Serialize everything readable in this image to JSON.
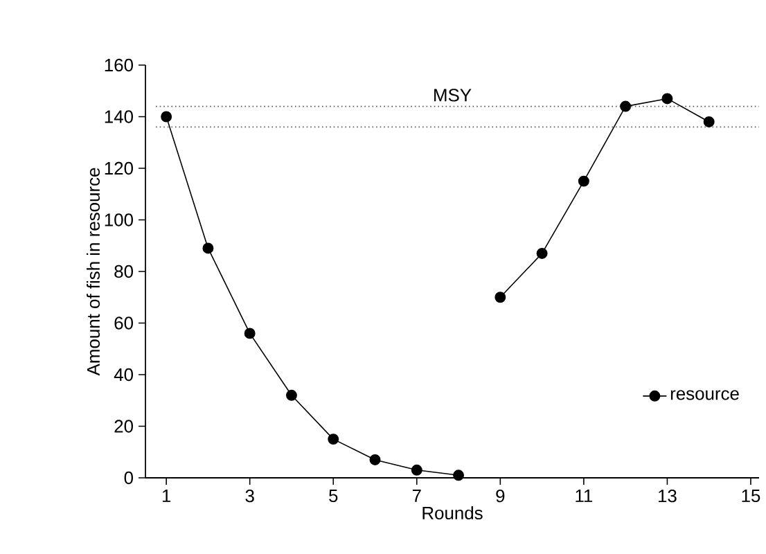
{
  "chart_data": {
    "type": "line",
    "xlabel": "Rounds",
    "ylabel": "Amount of fish in resource",
    "x": [
      1,
      2,
      3,
      4,
      5,
      6,
      7,
      8,
      8.5,
      9,
      10,
      11,
      12,
      13,
      14
    ],
    "series": [
      {
        "name": "resource",
        "color": "#000000",
        "values": [
          140,
          89,
          56,
          32,
          15,
          7,
          3,
          1,
          null,
          70,
          87,
          115,
          144,
          147,
          138
        ]
      }
    ],
    "xlim": [
      0.5,
      15.2
    ],
    "ylim": [
      0,
      160
    ],
    "xticks": [
      1,
      3,
      5,
      7,
      9,
      11,
      13,
      15
    ],
    "yticks": [
      0,
      20,
      40,
      60,
      80,
      100,
      120,
      140,
      160
    ],
    "ref_lines": [
      {
        "axis": "y",
        "value": 144,
        "label": "MSY",
        "line_style": "dotted",
        "color": "#555555"
      },
      {
        "axis": "y",
        "value": 136,
        "line_style": "dotted",
        "color": "#555555"
      }
    ],
    "marker": "circle",
    "line_style": "solid",
    "legend": "bottom right",
    "grid": false
  }
}
